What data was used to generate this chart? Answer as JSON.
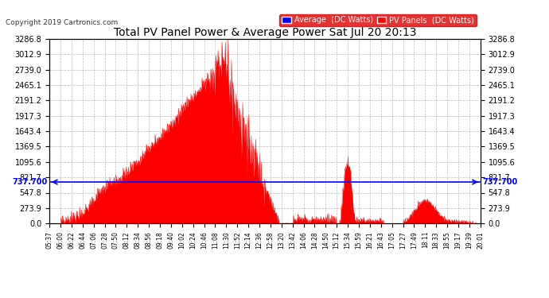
{
  "title": "Total PV Panel Power & Average Power Sat Jul 20 20:13",
  "copyright": "Copyright 2019 Cartronics.com",
  "legend_labels": [
    "Average  (DC Watts)",
    "PV Panels  (DC Watts)"
  ],
  "legend_colors": [
    "#0000ff",
    "#ff0000"
  ],
  "avg_value": 737.7,
  "y_max": 3286.8,
  "y_ticks": [
    0.0,
    273.9,
    547.8,
    821.7,
    1095.6,
    1369.5,
    1643.4,
    1917.3,
    2191.2,
    2465.1,
    2739.0,
    3012.9,
    3286.8
  ],
  "avg_label": "737.700",
  "background_color": "#ffffff",
  "fill_color": "#ff0000",
  "avg_line_color": "#0000ff",
  "grid_color": "#aaaaaa",
  "title_color": "#000000",
  "x_tick_labels": [
    "05:37",
    "06:00",
    "06:22",
    "06:44",
    "07:06",
    "07:28",
    "07:50",
    "08:12",
    "08:34",
    "08:56",
    "09:18",
    "09:40",
    "10:02",
    "10:24",
    "10:46",
    "11:08",
    "11:30",
    "11:52",
    "12:14",
    "12:36",
    "12:58",
    "13:20",
    "13:42",
    "14:06",
    "14:28",
    "14:50",
    "15:12",
    "15:34",
    "15:59",
    "16:21",
    "16:43",
    "17:05",
    "17:27",
    "17:49",
    "18:11",
    "18:33",
    "18:55",
    "19:17",
    "19:39",
    "20:01"
  ],
  "n_points": 1000
}
